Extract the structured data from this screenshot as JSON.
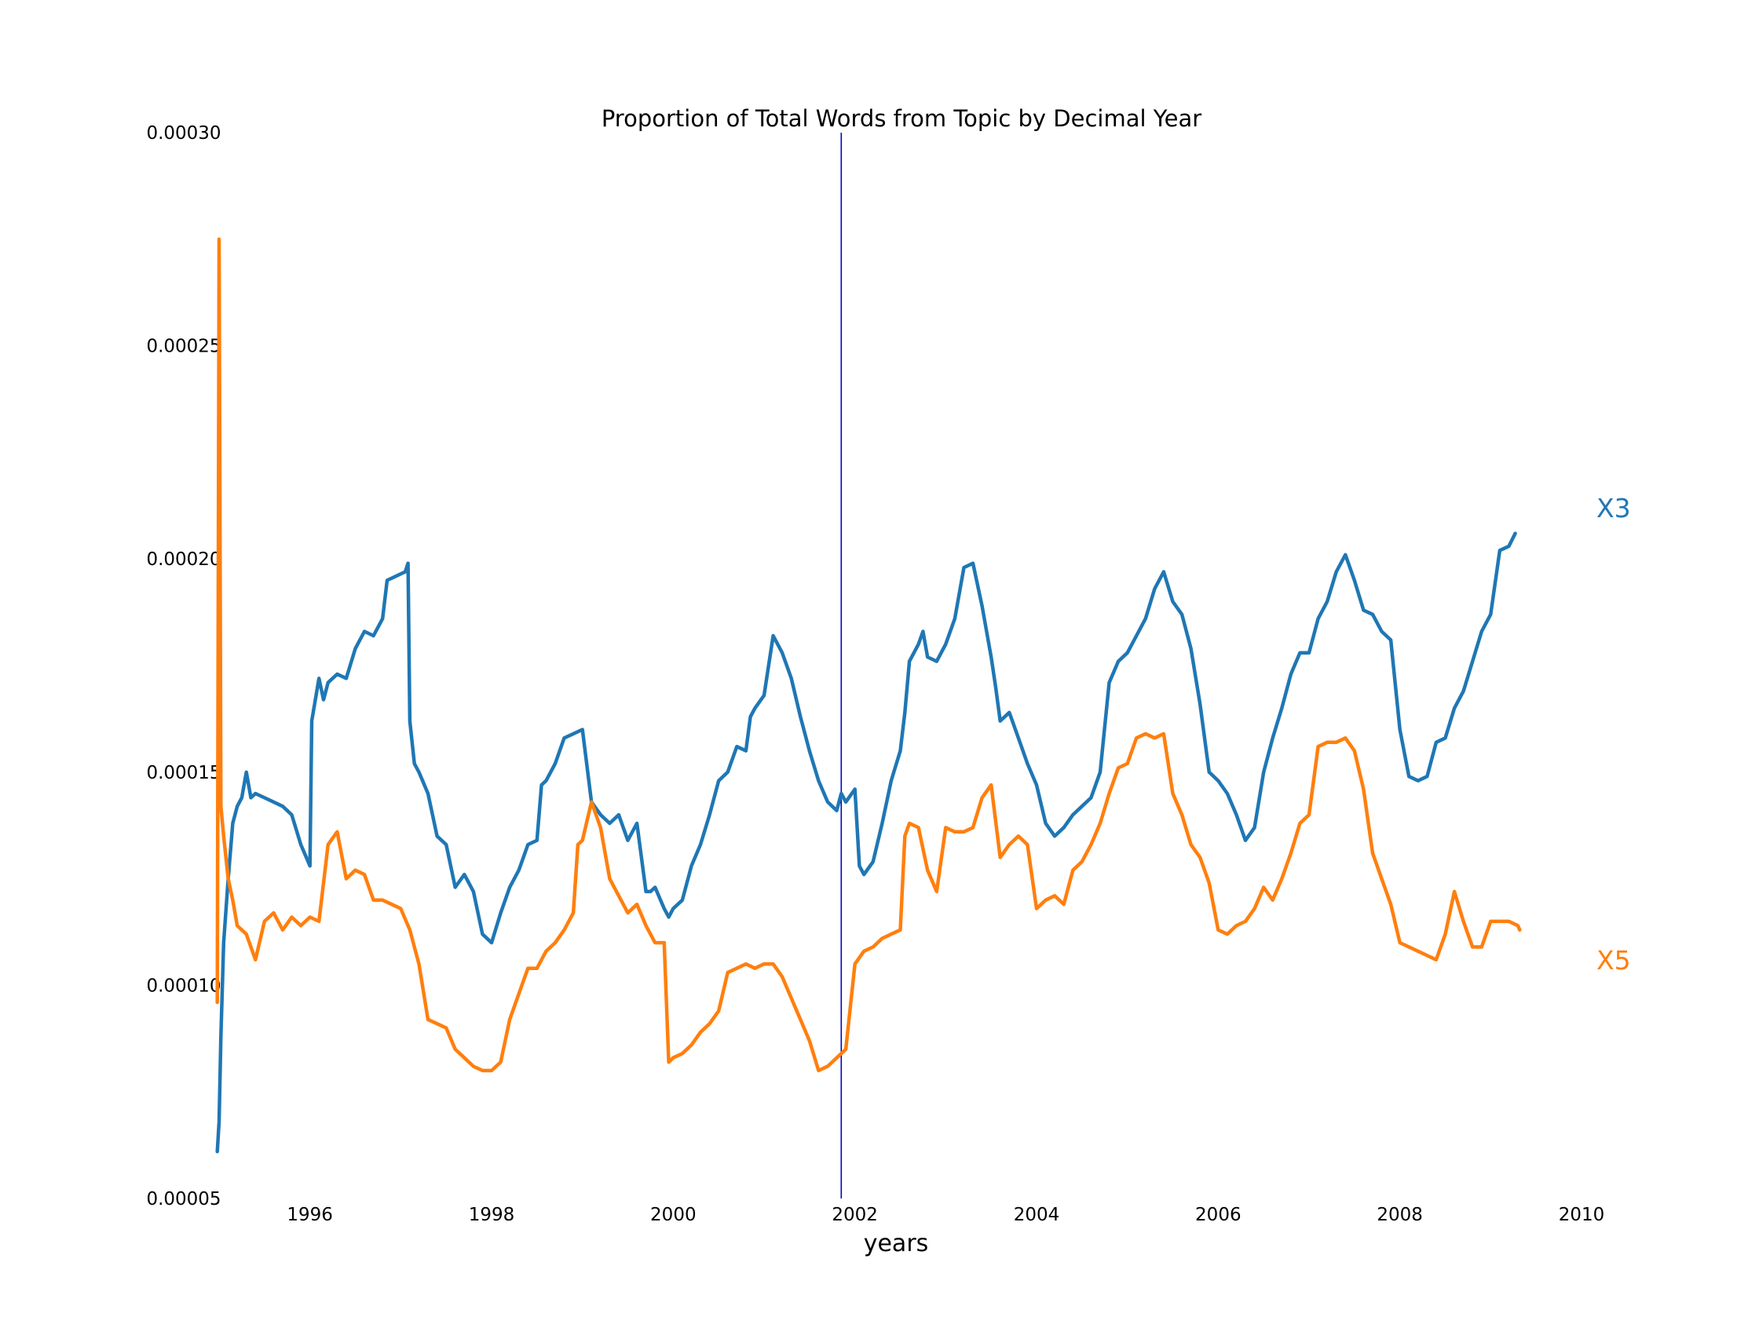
{
  "chart_data": {
    "type": "line",
    "title": "Proportion of Total Words from Topic by Decimal Year",
    "xlabel": "years",
    "ylabel": "",
    "xlim": [
      1995.0,
      2010.0
    ],
    "ylim": [
      5e-05,
      0.0003
    ],
    "x_ticks": [
      1996,
      1998,
      2000,
      2002,
      2004,
      2006,
      2008,
      2010
    ],
    "x_tick_labels": [
      "1996",
      "1998",
      "2000",
      "2002",
      "2004",
      "2006",
      "2008",
      "2010"
    ],
    "y_ticks": [
      5e-05,
      0.0001,
      0.00015,
      0.0002,
      0.00025,
      0.0003
    ],
    "y_tick_labels": [
      "0.00005",
      "0.00010",
      "0.00015",
      "0.00020",
      "0.00025",
      "0.00030"
    ],
    "grid": false,
    "vline": {
      "x": 2001.85,
      "color": "#0000cc"
    },
    "series": [
      {
        "name": "X3",
        "color": "#1f77b4",
        "label_color": "#1f77b4",
        "x": [
          1994.98,
          1995.0,
          1995.02,
          1995.05,
          1995.1,
          1995.15,
          1995.2,
          1995.25,
          1995.3,
          1995.35,
          1995.4,
          1995.5,
          1995.6,
          1995.7,
          1995.8,
          1995.9,
          1996.0,
          1996.02,
          1996.1,
          1996.15,
          1996.2,
          1996.3,
          1996.4,
          1996.5,
          1996.6,
          1996.7,
          1996.8,
          1996.85,
          1997.05,
          1997.08,
          1997.1,
          1997.15,
          1997.2,
          1997.3,
          1997.4,
          1997.5,
          1997.6,
          1997.7,
          1997.75,
          1997.8,
          1997.9,
          1998.0,
          1998.1,
          1998.2,
          1998.3,
          1998.4,
          1998.5,
          1998.55,
          1998.6,
          1998.7,
          1998.8,
          1998.9,
          1999.0,
          1999.1,
          1999.2,
          1999.3,
          1999.4,
          1999.5,
          1999.6,
          1999.7,
          1999.75,
          1999.8,
          1999.9,
          1999.95,
          2000.0,
          2000.1,
          2000.2,
          2000.3,
          2000.4,
          2000.5,
          2000.6,
          2000.7,
          2000.8,
          2000.85,
          2000.9,
          2001.0,
          2001.1,
          2001.2,
          2001.3,
          2001.4,
          2001.5,
          2001.6,
          2001.7,
          2001.8,
          2001.85,
          2001.9,
          2002.0,
          2002.05,
          2002.1,
          2002.2,
          2002.3,
          2002.4,
          2002.5,
          2002.55,
          2002.6,
          2002.7,
          2002.75,
          2002.8,
          2002.9,
          2003.0,
          2003.1,
          2003.2,
          2003.3,
          2003.4,
          2003.5,
          2003.55,
          2003.6,
          2003.7,
          2003.8,
          2003.9,
          2004.0,
          2004.1,
          2004.2,
          2004.3,
          2004.4,
          2004.5,
          2004.6,
          2004.7,
          2004.8,
          2004.9,
          2005.0,
          2005.1,
          2005.2,
          2005.3,
          2005.4,
          2005.5,
          2005.6,
          2005.7,
          2005.8,
          2005.9,
          2006.0,
          2006.1,
          2006.2,
          2006.3,
          2006.4,
          2006.5,
          2006.6,
          2006.7,
          2006.8,
          2006.9,
          2007.0,
          2007.1,
          2007.2,
          2007.3,
          2007.4,
          2007.5,
          2007.6,
          2007.7,
          2007.8,
          2007.9,
          2008.0,
          2008.1,
          2008.2,
          2008.3,
          2008.4,
          2008.5,
          2008.6,
          2008.7,
          2008.8,
          2008.9,
          2009.0,
          2009.1,
          2009.2,
          2009.27
        ],
        "values": [
          6.1e-05,
          6.8e-05,
          8.8e-05,
          0.00011,
          0.000125,
          0.000138,
          0.000142,
          0.000144,
          0.00015,
          0.000144,
          0.000145,
          0.000144,
          0.000143,
          0.000142,
          0.00014,
          0.000133,
          0.000128,
          0.000162,
          0.000172,
          0.000167,
          0.000171,
          0.000173,
          0.000172,
          0.000179,
          0.000183,
          0.000182,
          0.000186,
          0.000195,
          0.000197,
          0.000199,
          0.000162,
          0.000152,
          0.00015,
          0.000145,
          0.000135,
          0.000133,
          0.000123,
          0.000126,
          0.000124,
          0.000122,
          0.000112,
          0.00011,
          0.000117,
          0.000123,
          0.000127,
          0.000133,
          0.000134,
          0.000147,
          0.000148,
          0.000152,
          0.000158,
          0.000159,
          0.00016,
          0.000143,
          0.00014,
          0.000138,
          0.00014,
          0.000134,
          0.000138,
          0.000122,
          0.000122,
          0.000123,
          0.000118,
          0.000116,
          0.000118,
          0.00012,
          0.000128,
          0.000133,
          0.00014,
          0.000148,
          0.00015,
          0.000156,
          0.000155,
          0.000163,
          0.000165,
          0.000168,
          0.000182,
          0.000178,
          0.000172,
          0.000163,
          0.000155,
          0.000148,
          0.000143,
          0.000141,
          0.000145,
          0.000143,
          0.000146,
          0.000128,
          0.000126,
          0.000129,
          0.000138,
          0.000148,
          0.000155,
          0.000164,
          0.000176,
          0.00018,
          0.000183,
          0.000177,
          0.000176,
          0.00018,
          0.000186,
          0.000198,
          0.000199,
          0.000189,
          0.000177,
          0.00017,
          0.000162,
          0.000164,
          0.000158,
          0.000152,
          0.000147,
          0.000138,
          0.000135,
          0.000137,
          0.00014,
          0.000142,
          0.000144,
          0.00015,
          0.000171,
          0.000176,
          0.000178,
          0.000182,
          0.000186,
          0.000193,
          0.000197,
          0.00019,
          0.000187,
          0.000179,
          0.000166,
          0.00015,
          0.000148,
          0.000145,
          0.00014,
          0.000134,
          0.000137,
          0.00015,
          0.000158,
          0.000165,
          0.000173,
          0.000178,
          0.000178,
          0.000186,
          0.00019,
          0.000197,
          0.000201,
          0.000195,
          0.000188,
          0.000187,
          0.000183,
          0.000181,
          0.00016,
          0.000149,
          0.000148,
          0.000149,
          0.000157,
          0.000158,
          0.000165,
          0.000169,
          0.000176,
          0.000183,
          0.000187,
          0.000202,
          0.000203,
          0.000206
        ]
      },
      {
        "name": "X5",
        "color": "#ff7f0e",
        "label_color": "#ff7f0e",
        "x": [
          1994.98,
          1995.0,
          1995.02,
          1995.05,
          1995.1,
          1995.15,
          1995.2,
          1995.3,
          1995.4,
          1995.5,
          1995.6,
          1995.7,
          1995.8,
          1995.9,
          1996.0,
          1996.1,
          1996.2,
          1996.3,
          1996.4,
          1996.5,
          1996.6,
          1996.7,
          1996.8,
          1996.9,
          1997.0,
          1997.1,
          1997.2,
          1997.3,
          1997.4,
          1997.5,
          1997.6,
          1997.7,
          1997.8,
          1997.9,
          1998.0,
          1998.1,
          1998.2,
          1998.3,
          1998.4,
          1998.5,
          1998.6,
          1998.7,
          1998.8,
          1998.9,
          1998.95,
          1999.0,
          1999.1,
          1999.2,
          1999.3,
          1999.4,
          1999.5,
          1999.6,
          1999.7,
          1999.8,
          1999.9,
          1999.95,
          2000.0,
          2000.1,
          2000.2,
          2000.3,
          2000.4,
          2000.5,
          2000.6,
          2000.7,
          2000.8,
          2000.9,
          2001.0,
          2001.1,
          2001.2,
          2001.3,
          2001.4,
          2001.5,
          2001.6,
          2001.7,
          2001.8,
          2001.9,
          2002.0,
          2002.1,
          2002.2,
          2002.3,
          2002.4,
          2002.5,
          2002.55,
          2002.6,
          2002.7,
          2002.8,
          2002.9,
          2003.0,
          2003.1,
          2003.2,
          2003.3,
          2003.4,
          2003.5,
          2003.6,
          2003.7,
          2003.8,
          2003.9,
          2004.0,
          2004.1,
          2004.2,
          2004.3,
          2004.4,
          2004.5,
          2004.6,
          2004.7,
          2004.8,
          2004.9,
          2005.0,
          2005.1,
          2005.2,
          2005.3,
          2005.4,
          2005.5,
          2005.6,
          2005.7,
          2005.8,
          2005.9,
          2006.0,
          2006.1,
          2006.2,
          2006.3,
          2006.4,
          2006.5,
          2006.6,
          2006.7,
          2006.8,
          2006.9,
          2007.0,
          2007.1,
          2007.2,
          2007.3,
          2007.4,
          2007.5,
          2007.6,
          2007.7,
          2007.8,
          2007.9,
          2008.0,
          2008.1,
          2008.2,
          2008.3,
          2008.4,
          2008.5,
          2008.6,
          2008.7,
          2008.8,
          2008.9,
          2009.0,
          2009.1,
          2009.2,
          2009.3,
          2009.32
        ],
        "values": [
          9.6e-05,
          0.000275,
          0.000142,
          0.000135,
          0.000125,
          0.00012,
          0.000114,
          0.000112,
          0.000106,
          0.000115,
          0.000117,
          0.000113,
          0.000116,
          0.000114,
          0.000116,
          0.000115,
          0.000133,
          0.000136,
          0.000125,
          0.000127,
          0.000126,
          0.00012,
          0.00012,
          0.000119,
          0.000118,
          0.000113,
          0.000105,
          9.2e-05,
          9.1e-05,
          9e-05,
          8.5e-05,
          8.3e-05,
          8.1e-05,
          8e-05,
          8e-05,
          8.2e-05,
          9.2e-05,
          9.8e-05,
          0.000104,
          0.000104,
          0.000108,
          0.00011,
          0.000113,
          0.000117,
          0.000133,
          0.000134,
          0.000143,
          0.000137,
          0.000125,
          0.000121,
          0.000117,
          0.000119,
          0.000114,
          0.00011,
          0.00011,
          8.2e-05,
          8.3e-05,
          8.4e-05,
          8.6e-05,
          8.9e-05,
          9.1e-05,
          9.4e-05,
          0.000103,
          0.000104,
          0.000105,
          0.000104,
          0.000105,
          0.000105,
          0.000102,
          9.7e-05,
          9.2e-05,
          8.7e-05,
          8e-05,
          8.1e-05,
          8.3e-05,
          8.5e-05,
          0.000105,
          0.000108,
          0.000109,
          0.000111,
          0.000112,
          0.000113,
          0.000135,
          0.000138,
          0.000137,
          0.000127,
          0.000122,
          0.000137,
          0.000136,
          0.000136,
          0.000137,
          0.000144,
          0.000147,
          0.00013,
          0.000133,
          0.000135,
          0.000133,
          0.000118,
          0.00012,
          0.000121,
          0.000119,
          0.000127,
          0.000129,
          0.000133,
          0.000138,
          0.000145,
          0.000151,
          0.000152,
          0.000158,
          0.000159,
          0.000158,
          0.000159,
          0.000145,
          0.00014,
          0.000133,
          0.00013,
          0.000124,
          0.000113,
          0.000112,
          0.000114,
          0.000115,
          0.000118,
          0.000123,
          0.00012,
          0.000125,
          0.000131,
          0.000138,
          0.00014,
          0.000156,
          0.000157,
          0.000157,
          0.000158,
          0.000155,
          0.000146,
          0.000131,
          0.000125,
          0.000119,
          0.00011,
          0.000109,
          0.000108,
          0.000107,
          0.000106,
          0.000112,
          0.000122,
          0.000115,
          0.000109,
          0.000109,
          0.000115,
          0.000115,
          0.000115,
          0.000114,
          0.000113
        ]
      }
    ]
  }
}
